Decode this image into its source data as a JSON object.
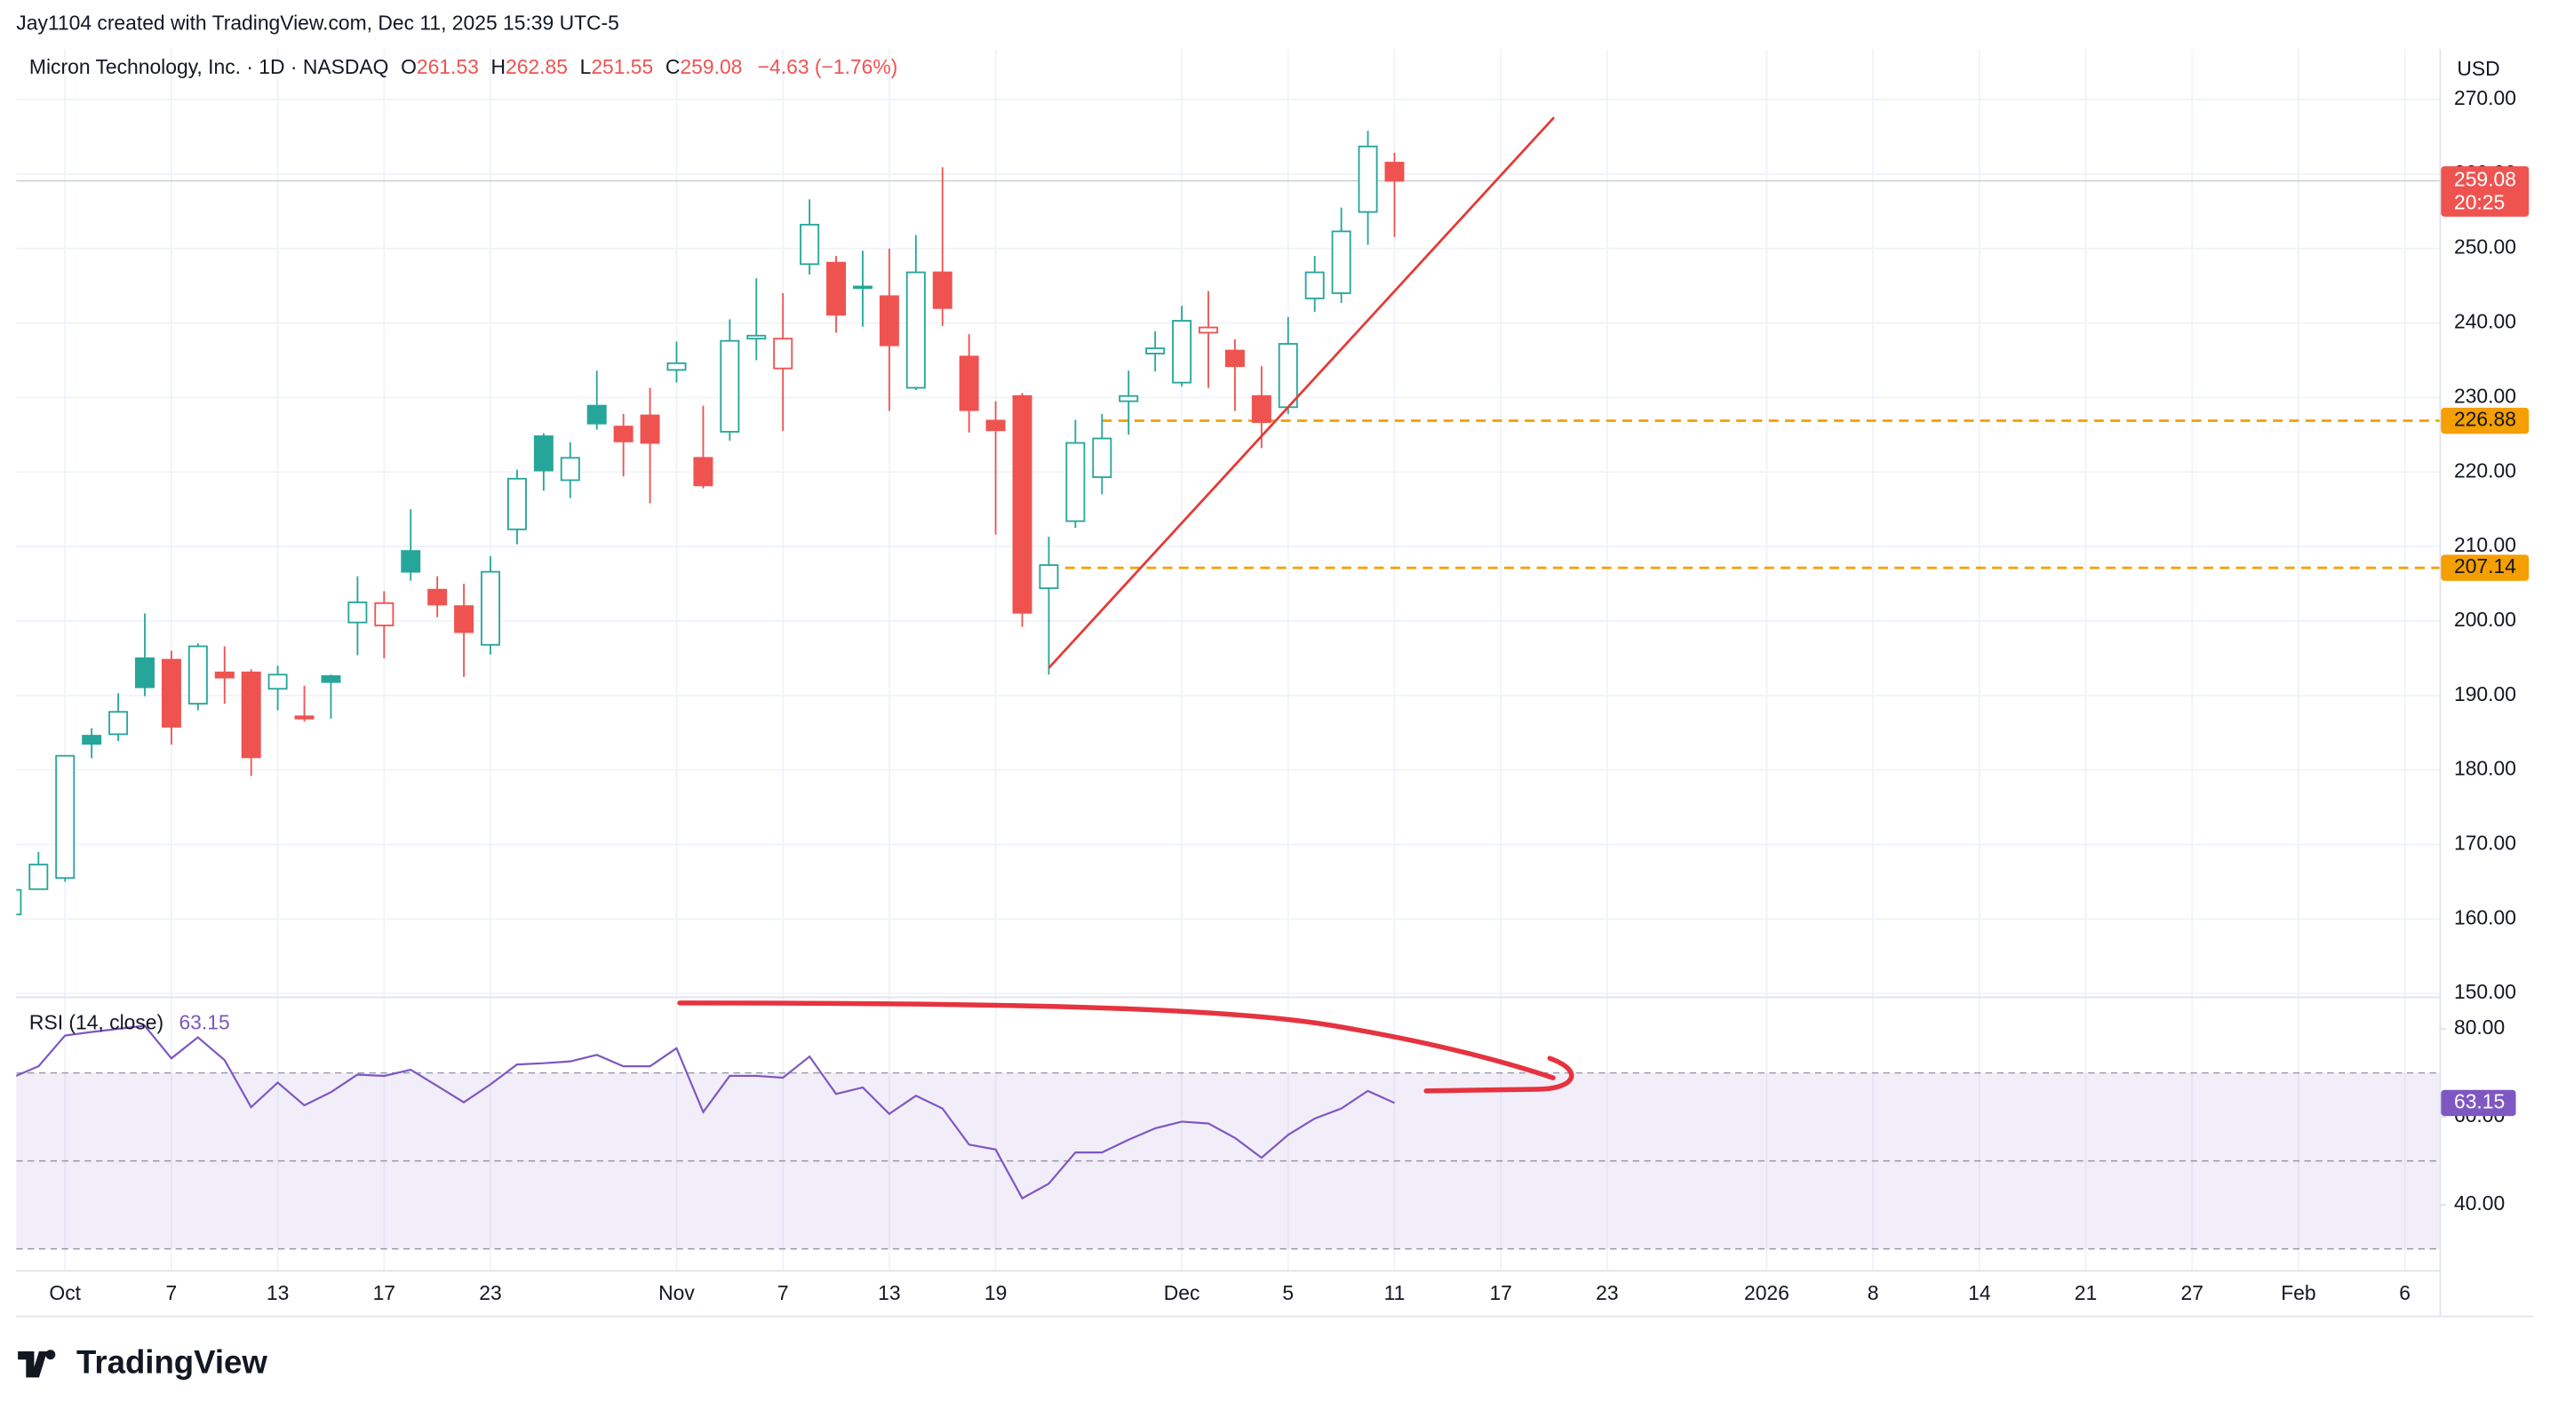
{
  "header": {
    "credit": "Jay1104 created with TradingView.com, Dec 11, 2025 15:39 UTC-5",
    "currency": "USD"
  },
  "chart_data": [
    {
      "type": "candlestick",
      "title": "Micron Technology, Inc. · 1D · NASDAQ",
      "legend": {
        "o": "O",
        "h": "H",
        "l": "L",
        "c": "C",
        "change": "−4.63 (−1.76%)"
      },
      "x": [
        -2,
        -1,
        0,
        1,
        2,
        3,
        4,
        5,
        6,
        7,
        8,
        9,
        10,
        11,
        12,
        13,
        14,
        15,
        16,
        17,
        18,
        19,
        20,
        21,
        22,
        23,
        24,
        25,
        26,
        27,
        28,
        29,
        30,
        31,
        32,
        33,
        34,
        35,
        36,
        37,
        38,
        39,
        40,
        41,
        42,
        43,
        44,
        45,
        46,
        47,
        48,
        49,
        50
      ],
      "open": [
        160.6,
        164.0,
        165.5,
        184.6,
        184.8,
        195.0,
        194.8,
        188.9,
        193.1,
        193.1,
        190.9,
        187.2,
        192.6,
        199.8,
        199.4,
        209.4,
        204.2,
        202.0,
        196.8,
        212.3,
        224.8,
        218.9,
        228.9,
        226.1,
        227.6,
        233.7,
        221.9,
        225.4,
        237.9,
        233.9,
        247.9,
        248.1,
        244.9,
        243.6,
        231.3,
        246.8,
        235.5,
        226.9,
        230.2,
        204.4,
        213.4,
        219.3,
        229.5,
        235.9,
        232.0,
        238.7,
        236.3,
        230.2,
        228.7,
        243.3,
        244.0,
        254.9,
        261.53
      ],
      "high": [
        164.5,
        169,
        182,
        185.6,
        190.3,
        201,
        196,
        197,
        196.6,
        193.5,
        194,
        191.3,
        192.8,
        206,
        204,
        215,
        206,
        205,
        208.7,
        220.3,
        225.2,
        224,
        233.6,
        227.8,
        231.3,
        237.5,
        228.9,
        240.5,
        246,
        244,
        256.6,
        249,
        249.7,
        250,
        251.8,
        260.9,
        238.5,
        229.5,
        230.6,
        211.3,
        227,
        227.8,
        233.6,
        238.9,
        242.3,
        244.3,
        237.8,
        234.2,
        240.8,
        249,
        255.5,
        265.8,
        262.85
      ],
      "low": [
        159.5,
        164,
        165,
        181.6,
        183.9,
        189.9,
        183.4,
        188,
        188.9,
        179.2,
        188,
        186.5,
        186.9,
        195.4,
        195,
        205.4,
        200.5,
        192.5,
        195.5,
        210.3,
        217.5,
        216.5,
        225.7,
        219.4,
        215.8,
        232,
        217.8,
        224.2,
        235,
        225.5,
        246.5,
        238.7,
        239.5,
        228.2,
        231,
        239.6,
        225.3,
        211.6,
        199.2,
        192.8,
        212.5,
        217,
        225,
        233.5,
        231.5,
        231.3,
        228.2,
        223.2,
        227.8,
        241.5,
        242.7,
        250.5,
        251.55
      ],
      "close": [
        163.9,
        167.3,
        181.9,
        183.5,
        187.8,
        191.1,
        185.8,
        196.6,
        192.4,
        181.7,
        192.8,
        186.9,
        191.8,
        202.5,
        202.4,
        206.6,
        202.2,
        198.5,
        206.6,
        219.1,
        220.2,
        221.9,
        226.5,
        224.1,
        223.9,
        234.6,
        218.2,
        237.6,
        238.3,
        237.9,
        253.2,
        241.1,
        244.8,
        237.0,
        246.8,
        242.0,
        228.3,
        225.6,
        201.1,
        207.5,
        223.9,
        224.5,
        230.2,
        236.6,
        240.3,
        239.4,
        234.2,
        226.7,
        237.2,
        246.8,
        252.3,
        263.7,
        259.08
      ],
      "up_color": "#26a69a",
      "down_color": "#ef5350",
      "countdown": "20:25",
      "xlim": [
        -1.835,
        89.3
      ],
      "xticks": [
        {
          "value": 0,
          "label": "Oct"
        },
        {
          "value": 4,
          "label": "7"
        },
        {
          "value": 8,
          "label": "13"
        },
        {
          "value": 12,
          "label": "17"
        },
        {
          "value": 16,
          "label": "23"
        },
        {
          "value": 23,
          "label": "Nov"
        },
        {
          "value": 27,
          "label": "7"
        },
        {
          "value": 31,
          "label": "13"
        },
        {
          "value": 35,
          "label": "19"
        },
        {
          "value": 42,
          "label": "Dec"
        },
        {
          "value": 46,
          "label": "5"
        },
        {
          "value": 50,
          "label": "11"
        },
        {
          "value": 54,
          "label": "17"
        },
        {
          "value": 58,
          "label": "23"
        },
        {
          "value": 64,
          "label": "2026"
        },
        {
          "value": 68,
          "label": "8"
        },
        {
          "value": 72,
          "label": "14"
        },
        {
          "value": 76,
          "label": "21"
        },
        {
          "value": 80,
          "label": "27"
        },
        {
          "value": 84,
          "label": "Feb"
        },
        {
          "value": 88,
          "label": "6"
        }
      ],
      "ylim": [
        149.6,
        276.8
      ],
      "yticks": [
        {
          "value": 150,
          "label": "150.00"
        },
        {
          "value": 160,
          "label": "160.00"
        },
        {
          "value": 170,
          "label": "170.00"
        },
        {
          "value": 180,
          "label": "180.00"
        },
        {
          "value": 190,
          "label": "190.00"
        },
        {
          "value": 200,
          "label": "200.00"
        },
        {
          "value": 210,
          "label": "210.00"
        },
        {
          "value": 220,
          "label": "220.00"
        },
        {
          "value": 230,
          "label": "230.00"
        },
        {
          "value": 240,
          "label": "240.00"
        },
        {
          "value": 250,
          "label": "250.00"
        },
        {
          "value": 260,
          "label": "260.00"
        },
        {
          "value": 270,
          "label": "270.00"
        }
      ],
      "grid": true,
      "hlines": [
        {
          "value": 226.88,
          "from": 39,
          "color": "#f59f00"
        },
        {
          "value": 207.14,
          "from": 37,
          "color": "#f59f00"
        }
      ],
      "trendline": {
        "x": [
          37,
          56
        ],
        "y": [
          193.7,
          267.6
        ],
        "color": "#e53935"
      }
    },
    {
      "type": "line",
      "title": "RSI (14, close)",
      "color": "#7e57c2",
      "x": [
        -2,
        -1,
        0,
        1,
        2,
        3,
        4,
        5,
        6,
        7,
        8,
        9,
        10,
        11,
        12,
        13,
        14,
        15,
        16,
        17,
        18,
        19,
        20,
        21,
        22,
        23,
        24,
        25,
        26,
        27,
        28,
        29,
        30,
        31,
        32,
        33,
        34,
        35,
        36,
        37,
        38,
        39,
        40,
        41,
        42,
        43,
        44,
        45,
        46,
        47,
        48,
        49,
        50
      ],
      "values": [
        68.9,
        71.5,
        78.5,
        79.3,
        80,
        80.7,
        73.3,
        78.1,
        72.9,
        62.2,
        67.8,
        62.6,
        65.6,
        69.6,
        69.3,
        70.7,
        67,
        63.3,
        67.4,
        71.9,
        72.2,
        72.6,
        74.1,
        71.5,
        71.5,
        75.6,
        61.1,
        69.3,
        69.3,
        68.9,
        73.7,
        65.2,
        66.7,
        60.7,
        64.8,
        61.9,
        53.7,
        52.6,
        41.5,
        44.8,
        51.9,
        51.9,
        54.8,
        57.4,
        58.9,
        58.5,
        55.2,
        50.7,
        55.9,
        59.6,
        61.9,
        65.9,
        63.15
      ],
      "ylim": [
        25.2,
        87
      ],
      "yticks": [
        {
          "value": 40,
          "label": "40.00"
        },
        {
          "value": 60,
          "label": "60.00"
        },
        {
          "value": 80,
          "label": "80.00"
        }
      ],
      "bands": [
        30,
        50,
        70
      ]
    }
  ],
  "footer": {
    "logo": "TradingView"
  }
}
